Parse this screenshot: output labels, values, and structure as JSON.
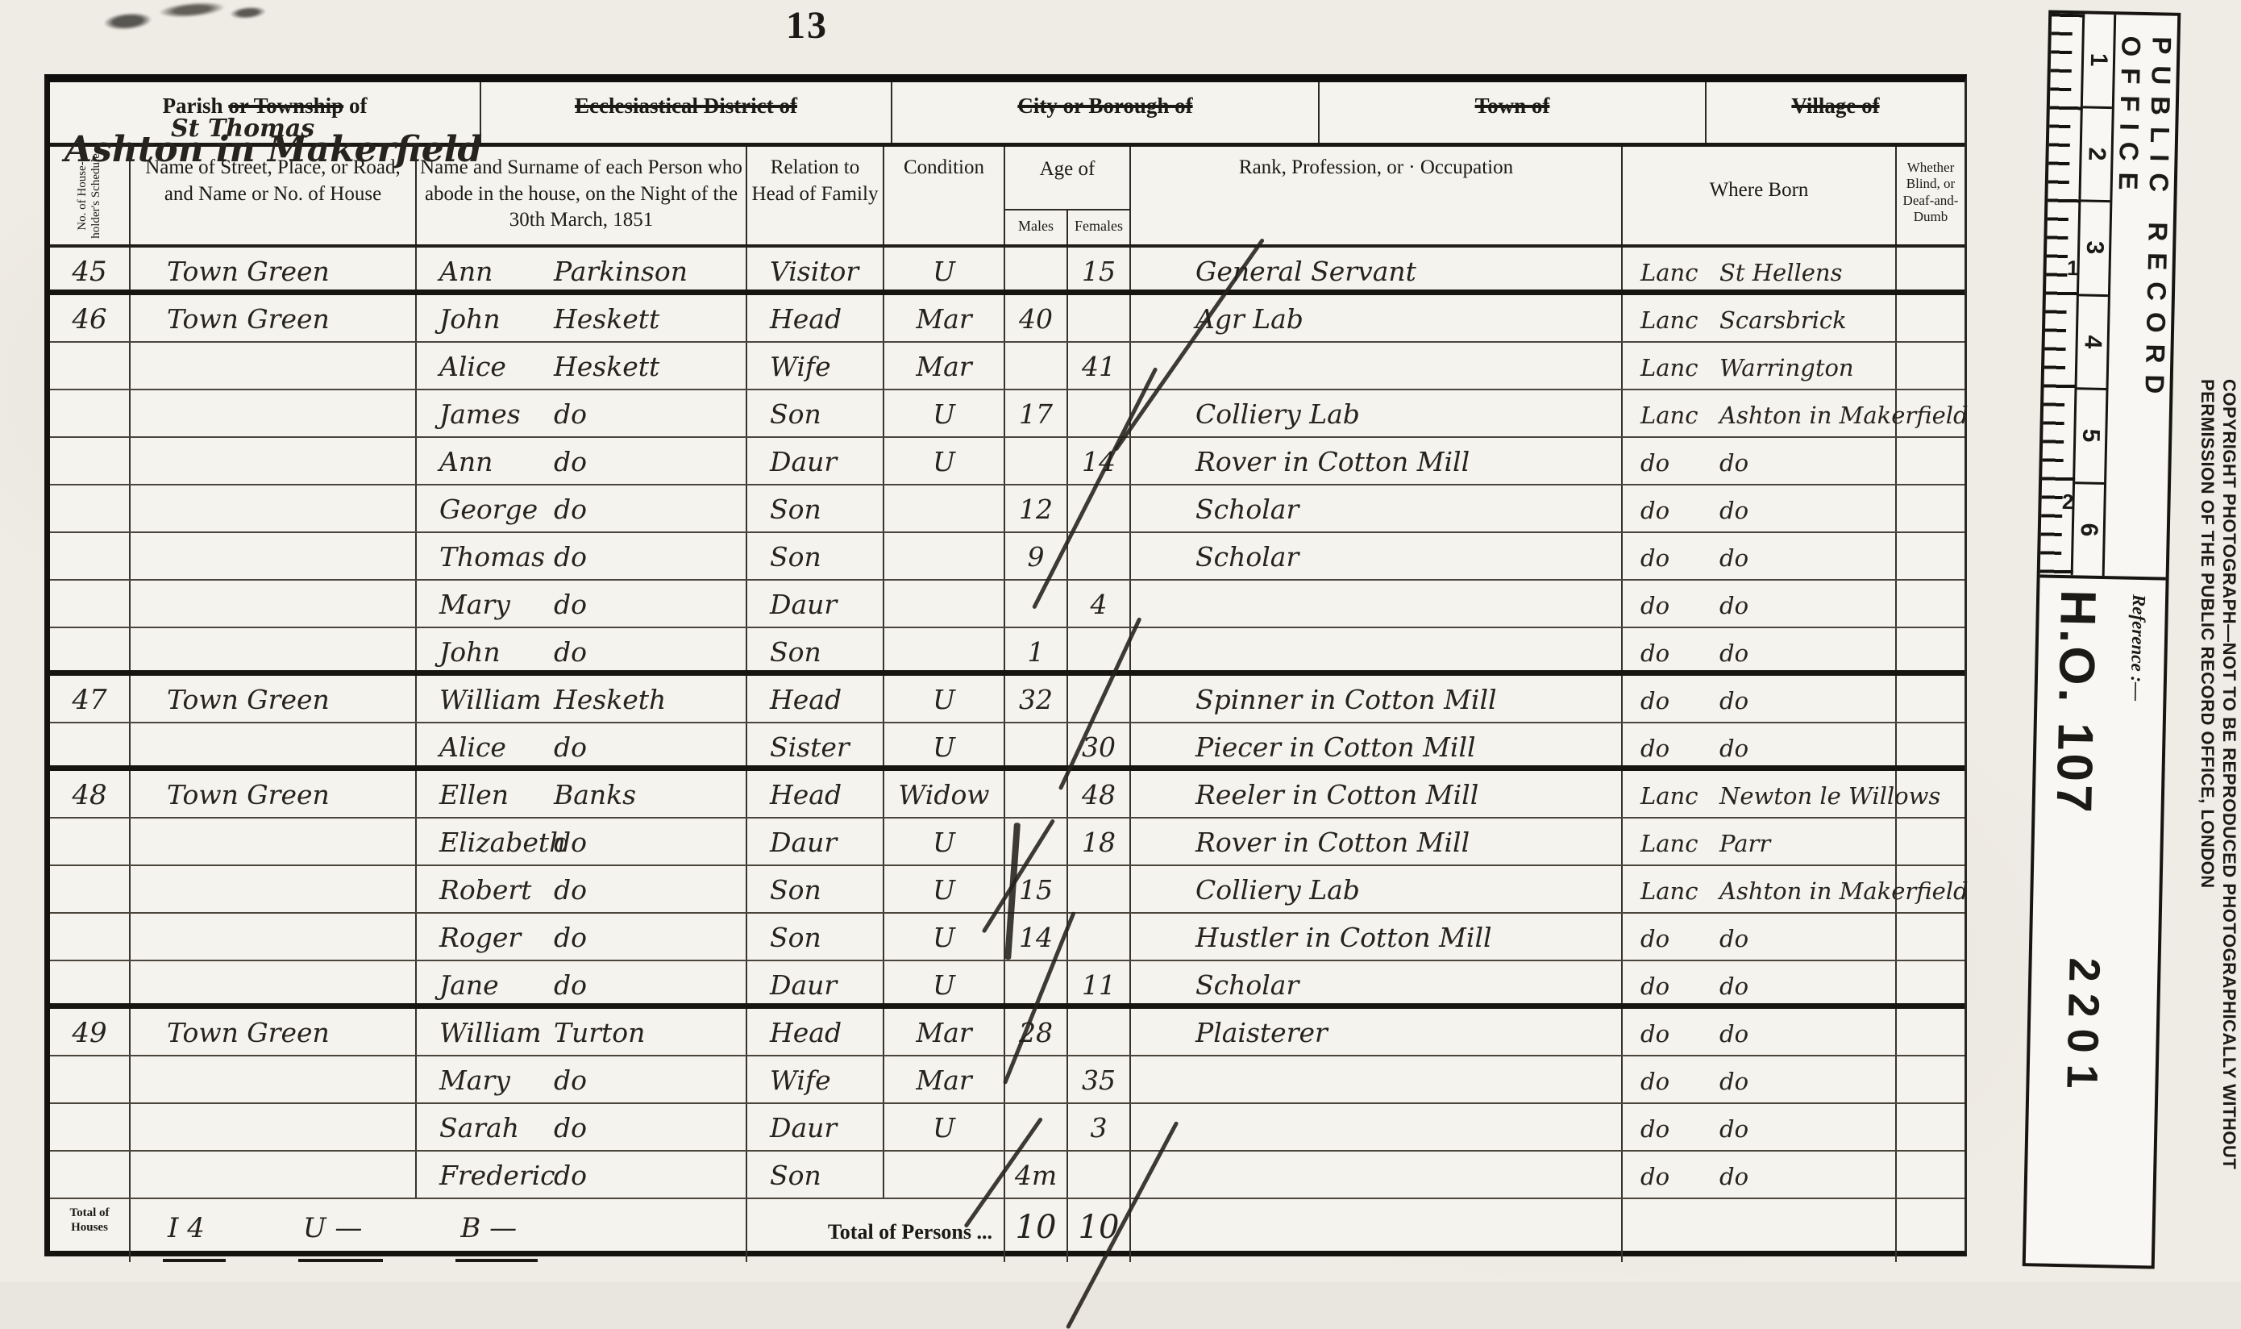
{
  "page": {
    "number": "13"
  },
  "header": {
    "parish_prefix": "Parish ",
    "parish_struck": "or Township",
    "parish_suffix": " of",
    "parish_value_line1": "St Thomas",
    "parish_value_line2": "Ashton in Makerfield",
    "ecclesiastical_label": "Ecclesiastical District of",
    "city_label": "City or Borough of",
    "town_label": "Town of",
    "village_label": "Village of"
  },
  "columns": {
    "schedule": "No. of House-holder's Schedule",
    "street": "Name of Street, Place, or Road, and Name or No. of House",
    "name": "Name and Surname of each Person who abode in the house, on the Night of the 30th March, 1851",
    "relation": "Relation to Head of Family",
    "condition": "Condition",
    "age": "Age of",
    "males": "Males",
    "females": "Females",
    "rank": "Rank, Profession, or · Occupation",
    "where_born": "Where Born",
    "blind": "Whether Blind, or Deaf-and-Dumb"
  },
  "rows": [
    {
      "schedule": "45",
      "street": "Town Green",
      "first": "Ann",
      "last": "Parkinson",
      "relation": "Visitor",
      "condition": "U",
      "m": "",
      "f": "15",
      "occ": "General Servant",
      "born_l": "Lanc",
      "born_r": "St Hellens",
      "end": true
    },
    {
      "schedule": "46",
      "street": "Town Green",
      "first": "John",
      "last": "Heskett",
      "relation": "Head",
      "condition": "Mar",
      "m": "40",
      "f": "",
      "occ": "Agr  Lab",
      "born_l": "Lanc",
      "born_r": "Scarsbrick",
      "end": false
    },
    {
      "schedule": "",
      "street": "",
      "first": "Alice",
      "last": "Heskett",
      "relation": "Wife",
      "condition": "Mar",
      "m": "",
      "f": "41",
      "occ": "",
      "born_l": "Lanc",
      "born_r": "Warrington",
      "end": false
    },
    {
      "schedule": "",
      "street": "",
      "first": "James",
      "last": "do",
      "relation": "Son",
      "condition": "U",
      "m": "17",
      "f": "",
      "occ": "Colliery  Lab",
      "born_l": "Lanc",
      "born_r": "Ashton in Makerfield",
      "end": false
    },
    {
      "schedule": "",
      "street": "",
      "first": "Ann",
      "last": "do",
      "relation": "Daur",
      "condition": "U",
      "m": "",
      "f": "14",
      "occ": "Rover in Cotton Mill",
      "born_l": "do",
      "born_r": "do",
      "end": false
    },
    {
      "schedule": "",
      "street": "",
      "first": "George",
      "last": "do",
      "relation": "Son",
      "condition": "",
      "m": "12",
      "f": "",
      "occ": "Scholar",
      "born_l": "do",
      "born_r": "do",
      "end": false
    },
    {
      "schedule": "",
      "street": "",
      "first": "Thomas",
      "last": "do",
      "relation": "Son",
      "condition": "",
      "m": "9",
      "f": "",
      "occ": "Scholar",
      "born_l": "do",
      "born_r": "do",
      "end": false
    },
    {
      "schedule": "",
      "street": "",
      "first": "Mary",
      "last": "do",
      "relation": "Daur",
      "condition": "",
      "m": "",
      "f": "4",
      "occ": "",
      "born_l": "do",
      "born_r": "do",
      "end": false
    },
    {
      "schedule": "",
      "street": "",
      "first": "John",
      "last": "do",
      "relation": "Son",
      "condition": "",
      "m": "1",
      "f": "",
      "occ": "",
      "born_l": "do",
      "born_r": "do",
      "end": true
    },
    {
      "schedule": "47",
      "street": "Town Green",
      "first": "William",
      "last": "Hesketh",
      "relation": "Head",
      "condition": "U",
      "m": "32",
      "f": "",
      "occ": "Spinner in Cotton Mill",
      "born_l": "do",
      "born_r": "do",
      "end": false
    },
    {
      "schedule": "",
      "street": "",
      "first": "Alice",
      "last": "do",
      "relation": "Sister",
      "condition": "U",
      "m": "",
      "f": "30",
      "occ": "Piecer in Cotton Mill",
      "born_l": "do",
      "born_r": "do",
      "end": true
    },
    {
      "schedule": "48",
      "street": "Town Green",
      "first": "Ellen",
      "last": "Banks",
      "relation": "Head",
      "condition": "Widow",
      "m": "",
      "f": "48",
      "occ": "Reeler in Cotton Mill",
      "born_l": "Lanc",
      "born_r": "Newton le Willows",
      "end": false
    },
    {
      "schedule": "",
      "street": "",
      "first": "Elizabeth",
      "last": "do",
      "relation": "Daur",
      "condition": "U",
      "m": "",
      "f": "18",
      "occ": "Rover in Cotton Mill",
      "born_l": "Lanc",
      "born_r": "Parr",
      "end": false
    },
    {
      "schedule": "",
      "street": "",
      "first": "Robert",
      "last": "do",
      "relation": "Son",
      "condition": "U",
      "m": "15",
      "f": "",
      "occ": "Colliery  Lab",
      "born_l": "Lanc",
      "born_r": "Ashton in Makerfield",
      "end": false
    },
    {
      "schedule": "",
      "street": "",
      "first": "Roger",
      "last": "do",
      "relation": "Son",
      "condition": "U",
      "m": "14",
      "f": "",
      "occ": "Hustler in Cotton Mill",
      "born_l": "do",
      "born_r": "do",
      "end": false
    },
    {
      "schedule": "",
      "street": "",
      "first": "Jane",
      "last": "do",
      "relation": "Daur",
      "condition": "U",
      "m": "",
      "f": "11",
      "occ": "Scholar",
      "born_l": "do",
      "born_r": "do",
      "end": true
    },
    {
      "schedule": "49",
      "street": "Town Green",
      "first": "William",
      "last": "Turton",
      "relation": "Head",
      "condition": "Mar",
      "m": "28",
      "f": "",
      "occ": "Plaisterer",
      "born_l": "do",
      "born_r": "do",
      "end": false
    },
    {
      "schedule": "",
      "street": "",
      "first": "Mary",
      "last": "do",
      "relation": "Wife",
      "condition": "Mar",
      "m": "",
      "f": "35",
      "occ": "",
      "born_l": "do",
      "born_r": "do",
      "end": false
    },
    {
      "schedule": "",
      "street": "",
      "first": "Sarah",
      "last": "do",
      "relation": "Daur",
      "condition": "U",
      "m": "",
      "f": "3",
      "occ": "",
      "born_l": "do",
      "born_r": "do",
      "end": false
    },
    {
      "schedule": "",
      "street": "",
      "first": "Frederic",
      "last": "do",
      "relation": "Son",
      "condition": "",
      "m": "4m",
      "f": "",
      "occ": "",
      "born_l": "do",
      "born_r": "do",
      "end": false
    }
  ],
  "footer": {
    "total_houses_label": "Total of Houses",
    "houses_value": "I 4",
    "uninhabited_value": "U —",
    "building_value": "B —",
    "total_persons_label": "Total of Persons ...",
    "males_total": "10",
    "females_total": "10"
  },
  "sidebar": {
    "office": "PUBLIC RECORD OFFICE",
    "ruler_numbers": [
      "1",
      "2",
      "3",
      "4",
      "5",
      "6"
    ],
    "inch_numbers": [
      "1",
      "2"
    ],
    "reference_label": "Reference :—",
    "reference_series": "H.O. 107",
    "reference_piece": "2201",
    "copyright": "COPYRIGHT PHOTOGRAPH—NOT TO BE REPRODUCED PHOTOGRAPHICALLY WITHOUT PERMISSION OF THE PUBLIC RECORD OFFICE, LONDON"
  }
}
